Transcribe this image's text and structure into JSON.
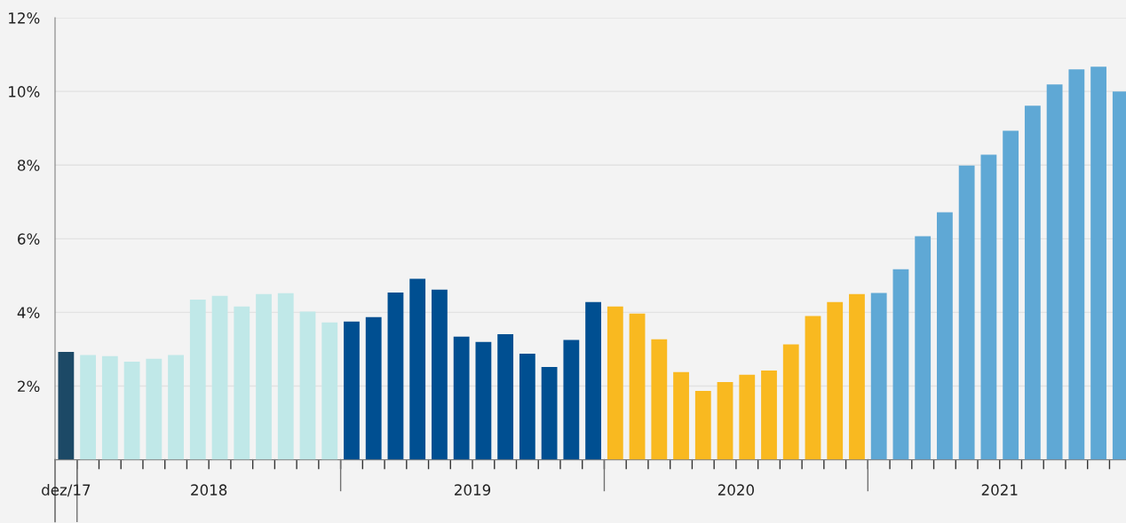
{
  "chart_data": {
    "type": "bar",
    "categories": [
      "dez/17",
      null,
      null,
      null,
      null,
      null,
      "2018",
      null,
      null,
      null,
      null,
      null,
      null,
      null,
      null,
      null,
      null,
      null,
      "2019",
      null,
      null,
      null,
      null,
      null,
      null,
      null,
      null,
      null,
      null,
      null,
      "2020",
      null,
      null,
      null,
      null,
      null,
      null,
      null,
      null,
      null,
      null,
      null,
      "2021",
      null,
      null,
      null,
      null,
      null,
      null
    ],
    "values": [
      2.93,
      2.84,
      2.81,
      2.66,
      2.74,
      2.84,
      4.35,
      4.45,
      4.16,
      4.5,
      4.52,
      4.02,
      3.73,
      3.75,
      3.87,
      4.54,
      4.91,
      4.62,
      3.34,
      3.2,
      3.41,
      2.88,
      2.52,
      3.25,
      4.28,
      4.16,
      3.97,
      3.27,
      2.38,
      1.87,
      2.11,
      2.31,
      2.42,
      3.13,
      3.9,
      4.28,
      4.5,
      4.53,
      5.17,
      6.07,
      6.72,
      7.99,
      8.28,
      8.93,
      9.61,
      10.19,
      10.6,
      10.67,
      10.0
    ],
    "colors": [
      "#1c4966",
      "#c0e8e8",
      "#c0e8e8",
      "#c0e8e8",
      "#c0e8e8",
      "#c0e8e8",
      "#c0e8e8",
      "#c0e8e8",
      "#c0e8e8",
      "#c0e8e8",
      "#c0e8e8",
      "#c0e8e8",
      "#c0e8e8",
      "#004f91",
      "#004f91",
      "#004f91",
      "#004f91",
      "#004f91",
      "#004f91",
      "#004f91",
      "#004f91",
      "#004f91",
      "#004f91",
      "#004f91",
      "#004f91",
      "#f9b920",
      "#f9b920",
      "#f9b920",
      "#f9b920",
      "#f9b920",
      "#f9b920",
      "#f9b920",
      "#f9b920",
      "#f9b920",
      "#f9b920",
      "#f9b920",
      "#f9b920",
      "#5fa8d5",
      "#5fa8d5",
      "#5fa8d5",
      "#5fa8d5",
      "#5fa8d5",
      "#5fa8d5",
      "#5fa8d5",
      "#5fa8d5",
      "#5fa8d5",
      "#5fa8d5",
      "#5fa8d5",
      "#5fa8d5"
    ],
    "ylim": [
      0,
      12
    ],
    "yticks": [
      {
        "value": 2,
        "label": "2%"
      },
      {
        "value": 4,
        "label": "4%"
      },
      {
        "value": 6,
        "label": "6%"
      },
      {
        "value": 8,
        "label": "8%"
      },
      {
        "value": 10,
        "label": "10%"
      },
      {
        "value": 12,
        "label": "12%"
      }
    ],
    "grid": "y"
  }
}
